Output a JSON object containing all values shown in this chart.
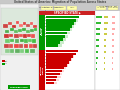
{
  "title": "United States of America: Migration of Population Across States",
  "bg_color": "#d8d8d8",
  "panel_bg": "#f0f0f0",
  "header_bg": "#c8c8c8",
  "title_color": "#444444",
  "green_dark": "#009900",
  "green_mid": "#33bb33",
  "green_light": "#99dd99",
  "red_dark": "#cc0000",
  "red_mid": "#ee3333",
  "red_light": "#ffaaaa",
  "yellow": "#dddd00",
  "yellow_bg": "#ffffaa",
  "white": "#ffffff",
  "map_land": "#e8e8e8",
  "map_border": "#cccccc",
  "inflow_bars": [
    10,
    9.2,
    8.6,
    8.0,
    7.4,
    6.8,
    6.2,
    5.6,
    5.0,
    4.4,
    3.8,
    3.2
  ],
  "outflow_bars": [
    8.5,
    7.8,
    7.2,
    6.6,
    6.0,
    5.4,
    4.8,
    4.2,
    3.6,
    3.0,
    2.5,
    2.0
  ],
  "right_green": [
    5.0,
    4.5,
    4.0,
    3.5,
    3.0,
    2.5,
    2.0,
    1.5,
    1.0,
    0.8
  ],
  "right_yellow": [
    4.0,
    3.5,
    3.0,
    2.5,
    2.0,
    1.8,
    1.5,
    1.2,
    1.0,
    0.8
  ],
  "right_pink": [
    3.0,
    2.8,
    2.5,
    2.2,
    2.0,
    1.8,
    1.5,
    1.2,
    1.0,
    0.8
  ],
  "state_patches": [
    [
      3,
      62,
      5,
      4,
      "#cc3333"
    ],
    [
      8,
      65,
      4,
      3,
      "#dd4444"
    ],
    [
      12,
      62,
      4,
      3,
      "#cc2222"
    ],
    [
      16,
      66,
      3,
      3,
      "#ee4444"
    ],
    [
      19,
      63,
      4,
      3,
      "#ff6666"
    ],
    [
      23,
      65,
      3,
      3,
      "#dd3333"
    ],
    [
      26,
      63,
      4,
      3,
      "#cc4444"
    ],
    [
      30,
      65,
      3,
      3,
      "#ee5555"
    ],
    [
      33,
      62,
      4,
      3,
      "#dd3333"
    ],
    [
      5,
      57,
      4,
      3,
      "#44aa44"
    ],
    [
      10,
      59,
      4,
      3,
      "#33aa33"
    ],
    [
      14,
      57,
      4,
      3,
      "#55bb55"
    ],
    [
      18,
      58,
      4,
      3,
      "#44bb44"
    ],
    [
      22,
      59,
      4,
      3,
      "#33aa33"
    ],
    [
      26,
      57,
      4,
      3,
      "#55bb55"
    ],
    [
      30,
      58,
      4,
      3,
      "#44aa44"
    ],
    [
      34,
      59,
      3,
      3,
      "#33bb33"
    ],
    [
      4,
      52,
      5,
      4,
      "#cc2222"
    ],
    [
      9,
      53,
      4,
      3,
      "#dd3333"
    ],
    [
      14,
      52,
      5,
      4,
      "#cc3333"
    ],
    [
      19,
      53,
      4,
      3,
      "#ee4444"
    ],
    [
      23,
      52,
      4,
      4,
      "#cc2222"
    ],
    [
      27,
      53,
      4,
      3,
      "#dd3333"
    ],
    [
      31,
      52,
      4,
      4,
      "#ee4444"
    ],
    [
      5,
      47,
      5,
      4,
      "#66cc66"
    ],
    [
      10,
      48,
      4,
      3,
      "#44bb44"
    ],
    [
      15,
      47,
      4,
      4,
      "#55aa55"
    ],
    [
      20,
      48,
      4,
      3,
      "#33aa33"
    ],
    [
      24,
      47,
      4,
      4,
      "#44bb44"
    ],
    [
      28,
      48,
      4,
      3,
      "#55cc55"
    ],
    [
      32,
      47,
      4,
      4,
      "#33bb33"
    ],
    [
      4,
      42,
      5,
      4,
      "#cc3333"
    ],
    [
      9,
      42,
      4,
      4,
      "#dd4444"
    ],
    [
      14,
      42,
      5,
      4,
      "#ee3333"
    ],
    [
      19,
      42,
      4,
      4,
      "#cc4444"
    ],
    [
      24,
      42,
      4,
      4,
      "#dd3333"
    ],
    [
      29,
      42,
      4,
      4,
      "#ee4444"
    ],
    [
      33,
      42,
      4,
      4,
      "#cc3333"
    ],
    [
      5,
      37,
      5,
      4,
      "#88cc88"
    ],
    [
      10,
      37,
      4,
      4,
      "#66bb66"
    ],
    [
      15,
      37,
      5,
      4,
      "#55aa55"
    ],
    [
      20,
      37,
      4,
      4,
      "#77cc77"
    ],
    [
      25,
      37,
      4,
      4,
      "#44bb44"
    ],
    [
      30,
      37,
      5,
      4,
      "#55aa55"
    ]
  ]
}
